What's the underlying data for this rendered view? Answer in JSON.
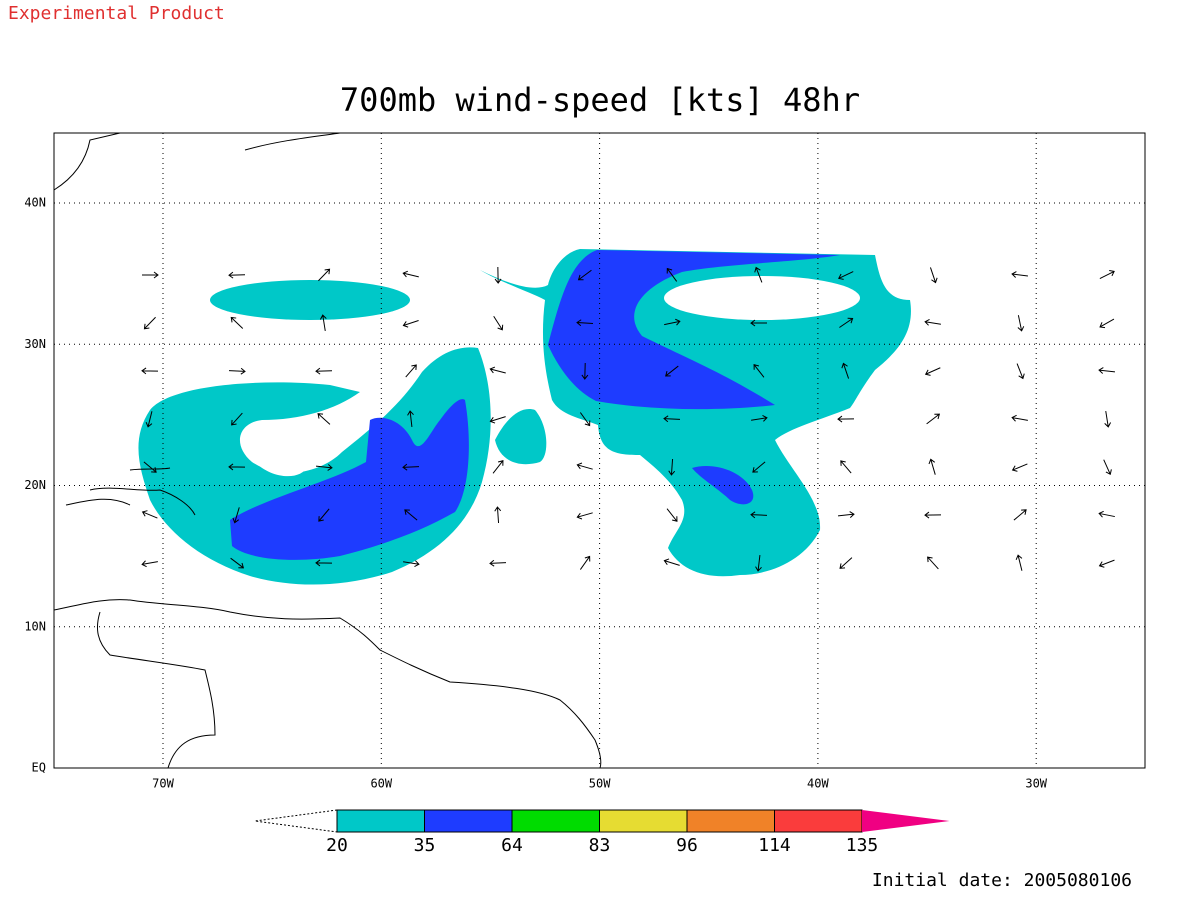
{
  "header": {
    "label": "Experimental Product"
  },
  "map": {
    "title": "700mb wind-speed [kts] 48hr",
    "lat_labels": [
      "40N",
      "30N",
      "20N",
      "10N",
      "EQ"
    ],
    "lon_labels": [
      "70W",
      "60W",
      "50W",
      "40W",
      "30W"
    ]
  },
  "colorbar": {
    "labels": [
      "20",
      "35",
      "64",
      "83",
      "96",
      "114",
      "135"
    ],
    "colors": [
      "#00c8c8",
      "#1e3cff",
      "#00dc00",
      "#e6dc32",
      "#f08228",
      "#fa3c3c",
      "#f00082"
    ]
  },
  "footer": {
    "initial_date": "Initial date: 2005080106"
  }
}
